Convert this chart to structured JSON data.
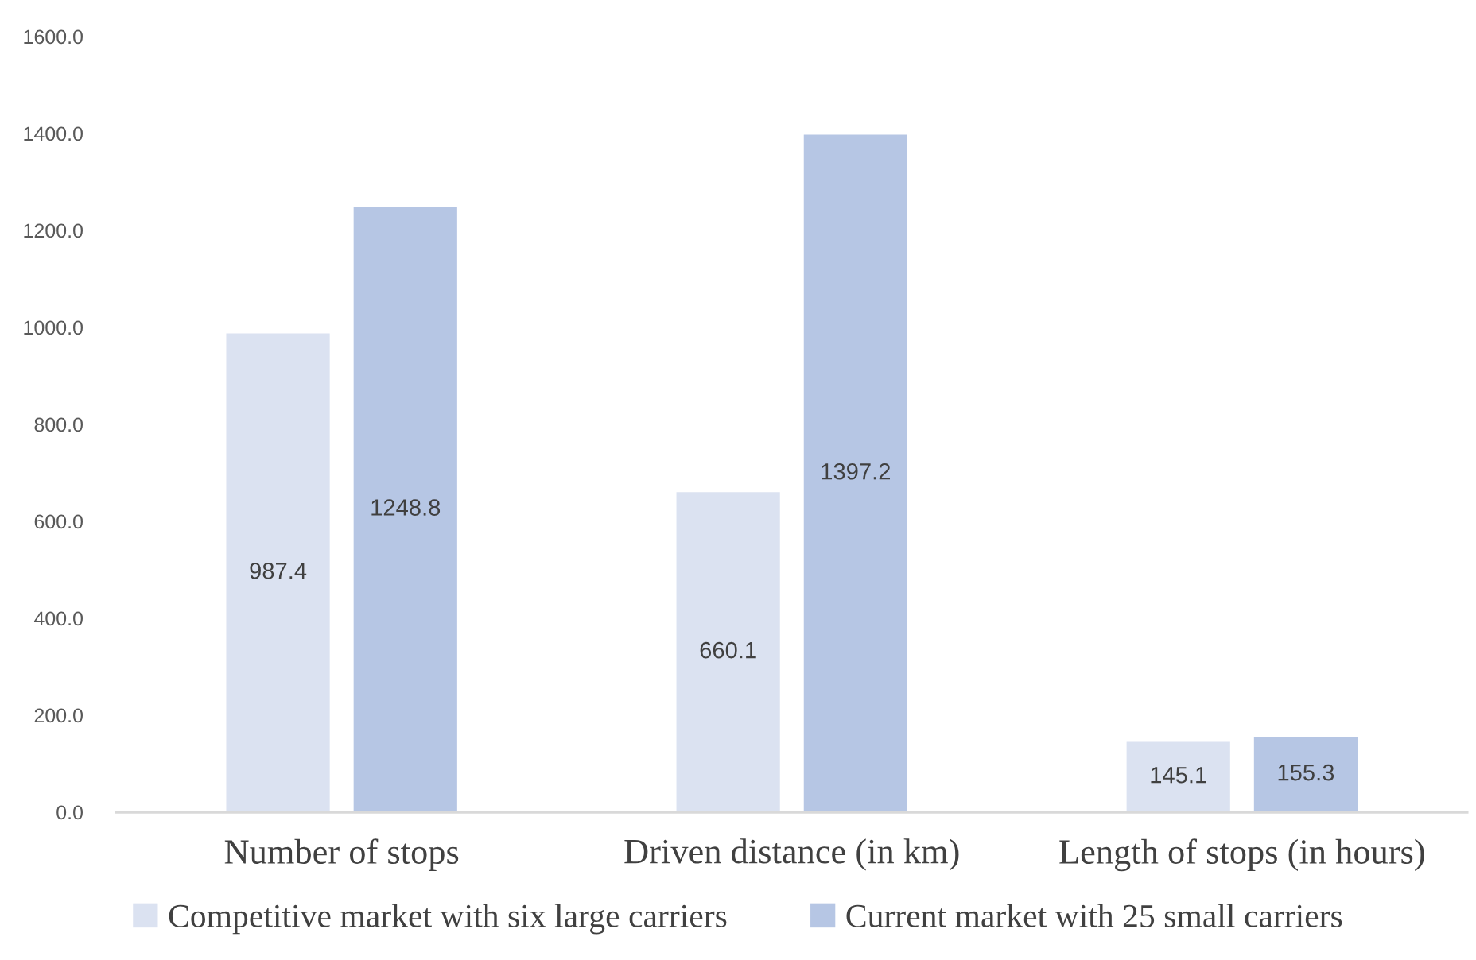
{
  "chart_data": {
    "type": "bar",
    "categories": [
      "Number of stops",
      "Driven distance (in km)",
      "Length of stops (in hours)"
    ],
    "series": [
      {
        "name": "Competitive market with six large carriers",
        "color": "#dbe2f1",
        "values": [
          987.4,
          660.1,
          145.1
        ]
      },
      {
        "name": "Current market with 25 small carriers",
        "color": "#b6c6e4",
        "values": [
          1248.8,
          1397.2,
          155.3
        ]
      }
    ],
    "ylim": [
      0,
      1600
    ],
    "yticks": [
      {
        "value": 0,
        "label": "0.0"
      },
      {
        "value": 200,
        "label": "200.0"
      },
      {
        "value": 400,
        "label": "400.0"
      },
      {
        "value": 600,
        "label": "600.0"
      },
      {
        "value": 800,
        "label": "800.0"
      },
      {
        "value": 1000,
        "label": "1000.0"
      },
      {
        "value": 1200,
        "label": "1200.0"
      },
      {
        "value": 1400,
        "label": "1400.0"
      },
      {
        "value": 1600,
        "label": "1600.0"
      }
    ],
    "data_labels": true,
    "legend": "bottom",
    "grid": false
  }
}
